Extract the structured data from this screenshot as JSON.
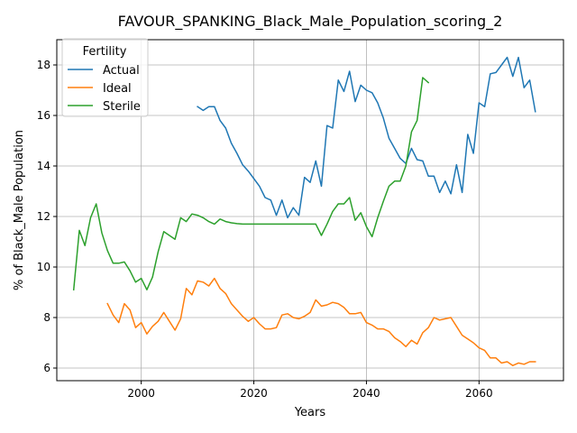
{
  "chart_data": {
    "type": "line",
    "title": "FAVOUR_SPANKING_Black_Male_Population_scoring_2",
    "xlabel": "Years",
    "ylabel": "% of Black_Male Population",
    "xlim": [
      1985,
      2075
    ],
    "ylim": [
      5.5,
      19.0
    ],
    "xticks": [
      2000,
      2020,
      2040,
      2060
    ],
    "yticks": [
      6,
      8,
      10,
      12,
      14,
      16,
      18
    ],
    "grid": true,
    "legend": {
      "title": "Fertility",
      "position": "top-left"
    },
    "series": [
      {
        "name": "Actual",
        "color": "#1f77b4",
        "x": [
          2010,
          2011,
          2012,
          2013,
          2014,
          2015,
          2016,
          2017,
          2018,
          2019,
          2020,
          2021,
          2022,
          2023,
          2024,
          2025,
          2026,
          2027,
          2028,
          2029,
          2030,
          2031,
          2032,
          2033,
          2034,
          2035,
          2036,
          2037,
          2038,
          2039,
          2040,
          2041,
          2042,
          2043,
          2044,
          2045,
          2046,
          2047,
          2048,
          2049,
          2050,
          2051,
          2052,
          2053,
          2054,
          2055,
          2056,
          2057,
          2058,
          2059,
          2060,
          2061,
          2062,
          2063,
          2064,
          2065,
          2066,
          2067,
          2068,
          2069,
          2070
        ],
        "y": [
          16.35,
          16.2,
          16.35,
          16.35,
          15.8,
          15.5,
          14.9,
          14.5,
          14.05,
          13.8,
          13.5,
          13.2,
          12.75,
          12.65,
          12.05,
          12.65,
          11.95,
          12.35,
          12.05,
          13.55,
          13.35,
          14.2,
          13.2,
          15.6,
          15.5,
          17.4,
          16.95,
          17.75,
          16.55,
          17.2,
          17.0,
          16.9,
          16.5,
          15.9,
          15.1,
          14.7,
          14.3,
          14.1,
          14.7,
          14.25,
          14.2,
          13.6,
          13.6,
          12.95,
          13.4,
          12.9,
          14.05,
          12.95,
          15.25,
          14.5,
          16.5,
          16.35,
          17.65,
          17.7,
          18.0,
          18.3,
          17.55,
          18.3,
          17.1,
          17.4,
          16.15
        ]
      },
      {
        "name": "Ideal",
        "color": "#ff7f0e",
        "x": [
          1994,
          1995,
          1996,
          1997,
          1998,
          1999,
          2000,
          2001,
          2002,
          2003,
          2004,
          2005,
          2006,
          2007,
          2008,
          2009,
          2010,
          2011,
          2012,
          2013,
          2014,
          2015,
          2016,
          2017,
          2018,
          2019,
          2020,
          2021,
          2022,
          2023,
          2024,
          2025,
          2026,
          2027,
          2028,
          2029,
          2030,
          2031,
          2032,
          2033,
          2034,
          2035,
          2036,
          2037,
          2038,
          2039,
          2040,
          2041,
          2042,
          2043,
          2044,
          2045,
          2046,
          2047,
          2048,
          2049,
          2050,
          2051,
          2052,
          2053,
          2054,
          2055,
          2056,
          2057,
          2058,
          2059,
          2060,
          2061,
          2062,
          2063,
          2064,
          2065,
          2066,
          2067,
          2068,
          2069,
          2070
        ],
        "y": [
          8.55,
          8.1,
          7.8,
          8.55,
          8.3,
          7.6,
          7.8,
          7.35,
          7.65,
          7.85,
          8.2,
          7.85,
          7.5,
          7.95,
          9.15,
          8.9,
          9.45,
          9.4,
          9.25,
          9.55,
          9.15,
          8.95,
          8.55,
          8.3,
          8.05,
          7.85,
          8.0,
          7.75,
          7.55,
          7.55,
          7.6,
          8.1,
          8.15,
          8.0,
          7.95,
          8.05,
          8.2,
          8.7,
          8.45,
          8.5,
          8.6,
          8.55,
          8.4,
          8.15,
          8.15,
          8.2,
          7.8,
          7.7,
          7.55,
          7.55,
          7.45,
          7.2,
          7.05,
          6.85,
          7.1,
          6.95,
          7.4,
          7.6,
          8.0,
          7.9,
          7.95,
          8.0,
          7.65,
          7.3,
          7.15,
          7.0,
          6.8,
          6.7,
          6.4,
          6.4,
          6.2,
          6.25,
          6.1,
          6.2,
          6.15,
          6.25,
          6.25
        ]
      },
      {
        "name": "Sterile",
        "color": "#2ca02c",
        "x": [
          1988,
          1989,
          1990,
          1991,
          1992,
          1993,
          1994,
          1995,
          1996,
          1997,
          1998,
          1999,
          2000,
          2001,
          2002,
          2003,
          2004,
          2005,
          2006,
          2007,
          2008,
          2009,
          2010,
          2011,
          2012,
          2013,
          2014,
          2015,
          2016,
          2017,
          2018,
          2019,
          2020,
          2021,
          2022,
          2023,
          2024,
          2025,
          2026,
          2027,
          2028,
          2029,
          2030,
          2031,
          2032,
          2033,
          2034,
          2035,
          2036,
          2037,
          2038,
          2039,
          2040,
          2041,
          2042,
          2043,
          2044,
          2045,
          2046,
          2047,
          2048,
          2049,
          2050,
          2051
        ],
        "y": [
          9.1,
          11.45,
          10.85,
          11.95,
          12.5,
          11.35,
          10.65,
          10.15,
          10.15,
          10.2,
          9.85,
          9.4,
          9.55,
          9.1,
          9.6,
          10.6,
          11.4,
          11.25,
          11.1,
          11.95,
          11.8,
          12.1,
          12.05,
          11.95,
          11.8,
          11.7,
          11.9,
          11.8,
          11.75,
          11.72,
          11.7,
          11.7,
          11.7,
          11.7,
          11.7,
          11.7,
          11.7,
          11.7,
          11.7,
          11.7,
          11.7,
          11.7,
          11.7,
          11.7,
          11.25,
          11.7,
          12.2,
          12.5,
          12.5,
          12.75,
          11.85,
          12.15,
          11.6,
          11.2,
          11.95,
          12.6,
          13.2,
          13.4,
          13.4,
          14.0,
          15.35,
          15.8,
          17.5,
          17.3
        ]
      }
    ]
  }
}
